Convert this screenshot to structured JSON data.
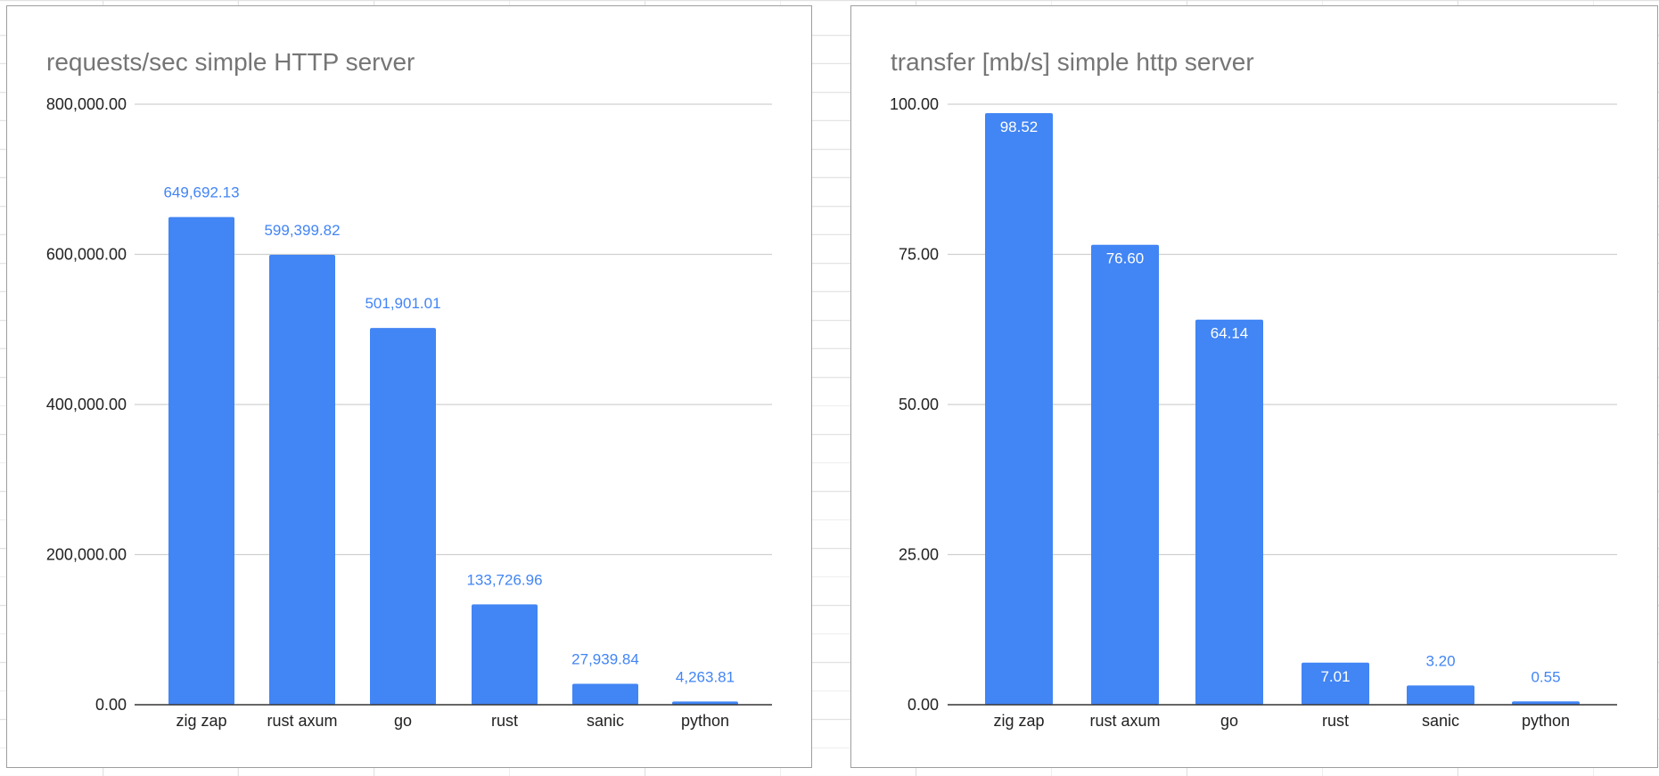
{
  "chart_data": [
    {
      "type": "bar",
      "title": "requests/sec simple HTTP server",
      "categories": [
        "zig zap",
        "rust axum",
        "go",
        "rust",
        "sanic",
        "python"
      ],
      "values": [
        649692.13,
        599399.82,
        501901.01,
        133726.96,
        27939.84,
        4263.81
      ],
      "data_labels": [
        "649,692.13",
        "599,399.82",
        "501,901.01",
        "133,726.96",
        "27,939.84",
        "4,263.81"
      ],
      "yticks": [
        "0.00",
        "200,000.00",
        "400,000.00",
        "600,000.00",
        "800,000.00"
      ],
      "ytick_values": [
        0,
        200000,
        400000,
        600000,
        800000
      ],
      "ylim": [
        0,
        800000
      ],
      "xlabel": "",
      "ylabel": "",
      "grid": true,
      "legend": "none",
      "bar_color": "#4285f4",
      "label_placement": "outside"
    },
    {
      "type": "bar",
      "title": "transfer [mb/s] simple http server",
      "categories": [
        "zig zap",
        "rust axum",
        "go",
        "rust",
        "sanic",
        "python"
      ],
      "values": [
        98.52,
        76.6,
        64.14,
        7.01,
        3.2,
        0.55
      ],
      "data_labels": [
        "98.52",
        "76.60",
        "64.14",
        "7.01",
        "3.20",
        "0.55"
      ],
      "yticks": [
        "0.00",
        "25.00",
        "50.00",
        "75.00",
        "100.00"
      ],
      "ytick_values": [
        0,
        25,
        50,
        75,
        100
      ],
      "ylim": [
        0,
        100
      ],
      "xlabel": "",
      "ylabel": "",
      "grid": true,
      "legend": "none",
      "bar_color": "#4285f4",
      "label_placement": "inside-end"
    }
  ]
}
